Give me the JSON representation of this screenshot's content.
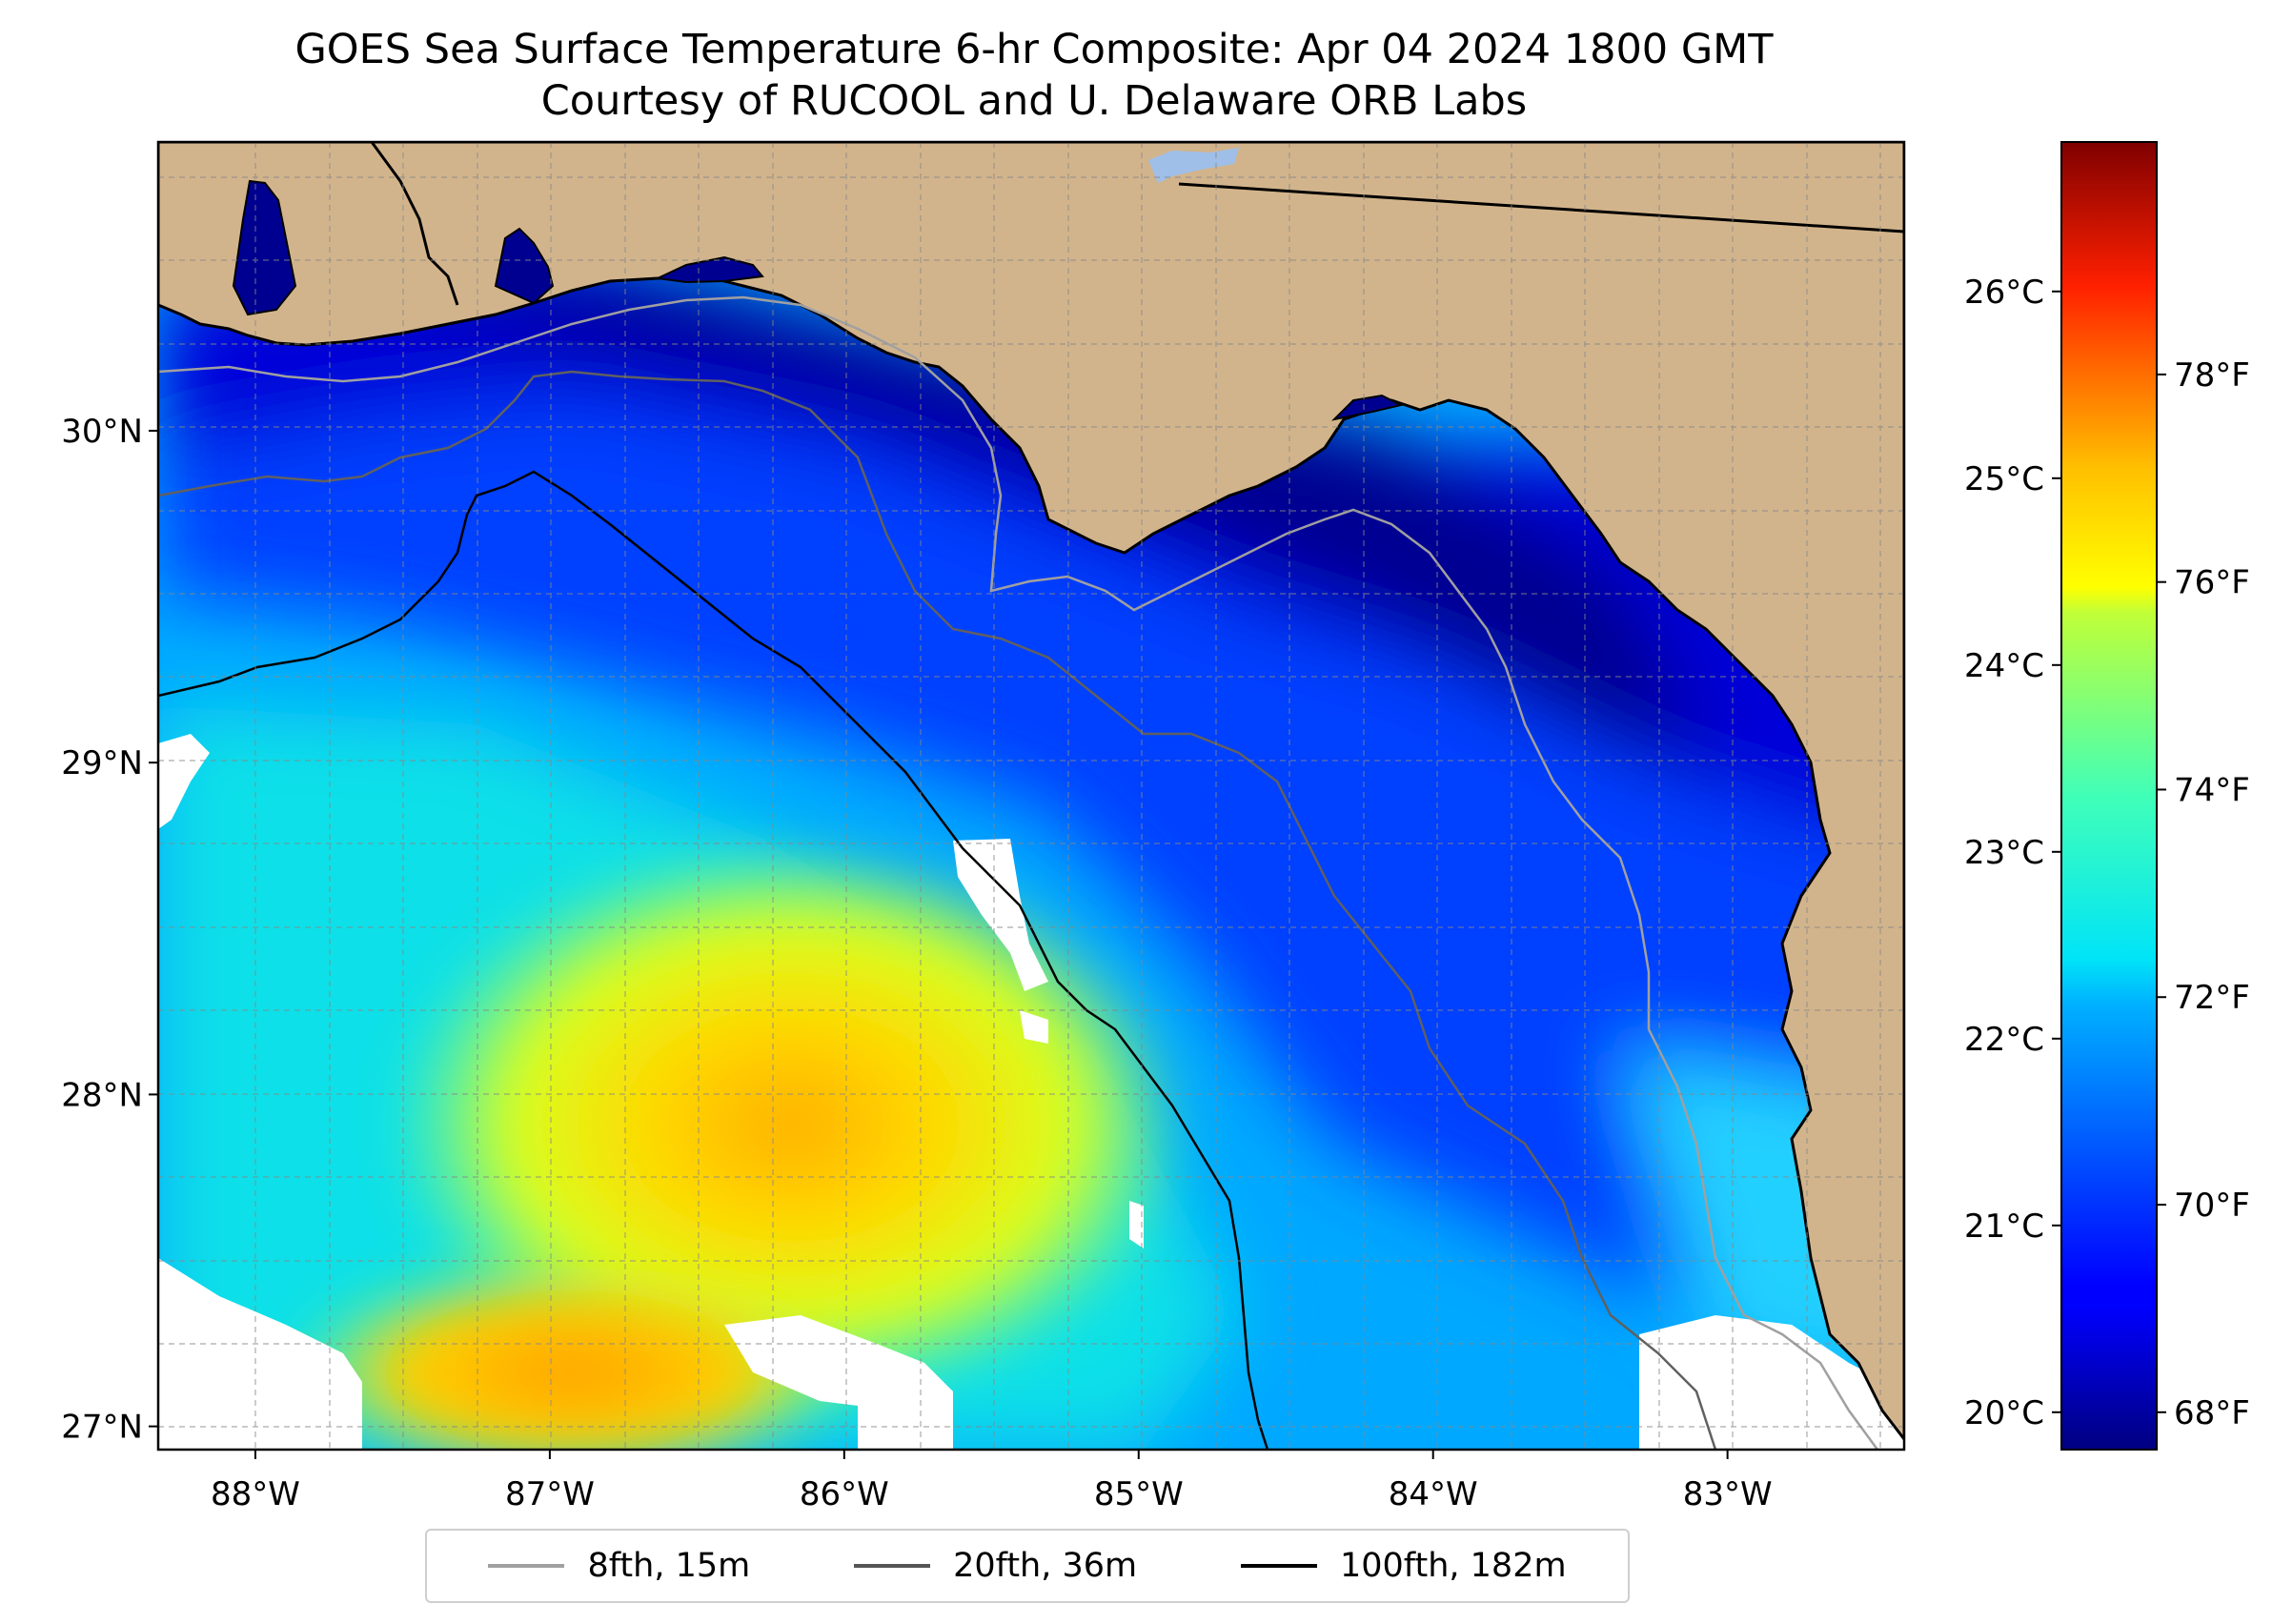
{
  "title": "GOES Sea Surface Temperature 6-hr Composite: Apr 04 2024 1800 GMT",
  "subtitle": "Courtesy of RUCOOL and U. Delaware ORB Labs",
  "map": {
    "lon_range": [
      -88.33,
      -82.4
    ],
    "lat_range": [
      26.93,
      30.87
    ],
    "lon_ticks": [
      {
        "value": -88,
        "label": "88°W"
      },
      {
        "value": -87,
        "label": "87°W"
      },
      {
        "value": -86,
        "label": "86°W"
      },
      {
        "value": -85,
        "label": "85°W"
      },
      {
        "value": -84,
        "label": "84°W"
      },
      {
        "value": -83,
        "label": "83°W"
      }
    ],
    "lat_ticks": [
      {
        "value": 30,
        "label": "30°N"
      },
      {
        "value": 29,
        "label": "29°N"
      },
      {
        "value": 28,
        "label": "28°N"
      },
      {
        "value": 27,
        "label": "27°N"
      }
    ],
    "grid": true,
    "land_color": "#d2b48c",
    "nodata_color": "#ffffff"
  },
  "colorbar": {
    "colormap": "jet",
    "range_c": [
      19.8,
      26.8
    ],
    "celsius_ticks": [
      {
        "value": 20,
        "label": "20°C"
      },
      {
        "value": 21,
        "label": "21°C"
      },
      {
        "value": 22,
        "label": "22°C"
      },
      {
        "value": 23,
        "label": "23°C"
      },
      {
        "value": 24,
        "label": "24°C"
      },
      {
        "value": 25,
        "label": "25°C"
      },
      {
        "value": 26,
        "label": "26°C"
      }
    ],
    "fahrenheit_ticks": [
      {
        "value": 68,
        "label": "68°F"
      },
      {
        "value": 70,
        "label": "70°F"
      },
      {
        "value": 72,
        "label": "72°F"
      },
      {
        "value": 74,
        "label": "74°F"
      },
      {
        "value": 76,
        "label": "76°F"
      },
      {
        "value": 78,
        "label": "78°F"
      }
    ]
  },
  "legend": {
    "placement": "bottom-center",
    "items": [
      {
        "label": "8fth, 15m",
        "color": "#a0a0a0"
      },
      {
        "label": "20fth, 36m",
        "color": "#555555"
      },
      {
        "label": "100fth, 182m",
        "color": "#000000"
      }
    ]
  }
}
